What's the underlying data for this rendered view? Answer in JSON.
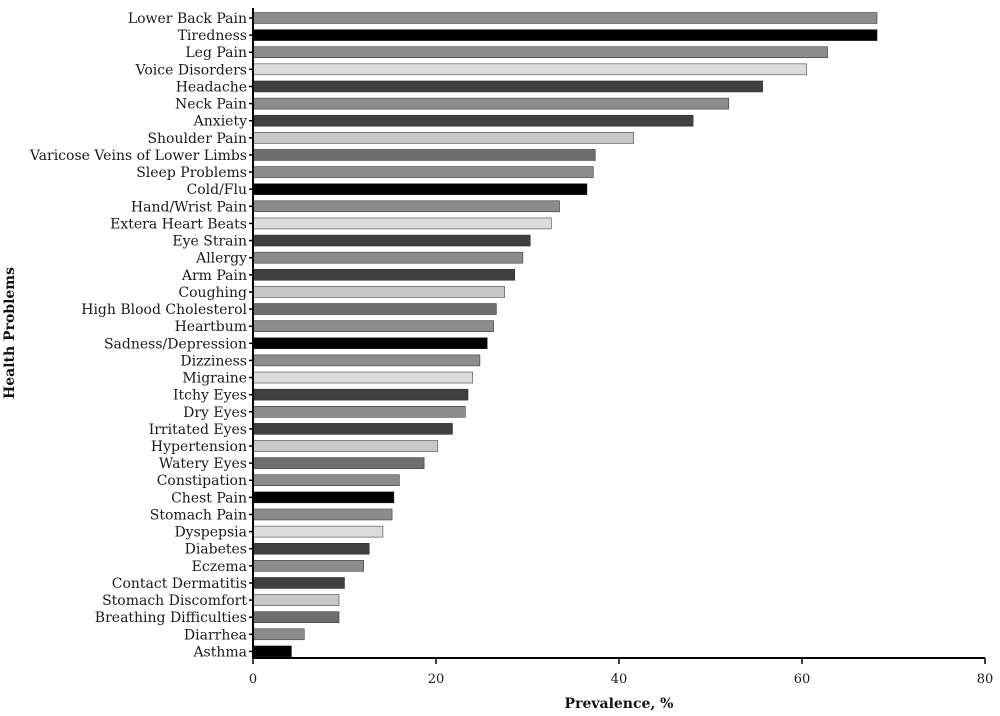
{
  "chart_data": {
    "type": "bar",
    "orientation": "horizontal",
    "xlabel": "Prevalence, %",
    "ylabel": "Health Problems",
    "xlim": [
      0,
      80
    ],
    "xticks": [
      "0",
      "20",
      "40",
      "60",
      "80"
    ],
    "grid": false,
    "categories": [
      "Lower Back Pain",
      "Tiredness",
      "Leg Pain",
      "Voice Disorders",
      "Headache",
      "Neck Pain",
      "Anxiety",
      "Shoulder Pain",
      "Varicose Veins of Lower Limbs",
      "Sleep Problems",
      "Cold/Flu",
      "Hand/Wrist Pain",
      "Extera Heart Beats",
      "Eye Strain",
      "Allergy",
      "Arm Pain",
      "Coughing",
      "High Blood Cholesterol",
      "Heartbum",
      "Sadness/Depression",
      "Dizziness",
      "Migraine",
      "Itchy Eyes",
      "Dry Eyes",
      "Irritated Eyes",
      "Hypertension",
      "Watery Eyes",
      "Constipation",
      "Chest Pain",
      "Stomach Pain",
      "Dyspepsia",
      "Diabetes",
      "Eczema",
      "Contact Dermatitis",
      "Stomach Discomfort",
      "Breathing Difficulties",
      "Diarrhea",
      "Asthma"
    ],
    "values": [
      68.2,
      68.2,
      62.8,
      60.5,
      55.7,
      52.0,
      48.1,
      41.6,
      37.4,
      37.2,
      36.5,
      33.5,
      32.6,
      30.3,
      29.5,
      28.6,
      27.5,
      26.6,
      26.3,
      25.6,
      24.8,
      24.0,
      23.5,
      23.2,
      21.8,
      20.2,
      18.7,
      16.0,
      15.4,
      15.2,
      14.2,
      12.7,
      12.1,
      10.0,
      9.4,
      9.4,
      5.6,
      4.2
    ],
    "colors": [
      "#8c8c8c",
      "#000000",
      "#8c8c8c",
      "#dcdcdc",
      "#404040",
      "#8c8c8c",
      "#404040",
      "#c8c8c8",
      "#6e6e6e",
      "#8c8c8c",
      "#000000",
      "#8c8c8c",
      "#dcdcdc",
      "#404040",
      "#8c8c8c",
      "#404040",
      "#c8c8c8",
      "#6e6e6e",
      "#8c8c8c",
      "#000000",
      "#8c8c8c",
      "#dcdcdc",
      "#404040",
      "#8c8c8c",
      "#404040",
      "#c8c8c8",
      "#6e6e6e",
      "#8c8c8c",
      "#000000",
      "#8c8c8c",
      "#dcdcdc",
      "#404040",
      "#8c8c8c",
      "#404040",
      "#c8c8c8",
      "#6e6e6e",
      "#8c8c8c",
      "#000000"
    ]
  }
}
